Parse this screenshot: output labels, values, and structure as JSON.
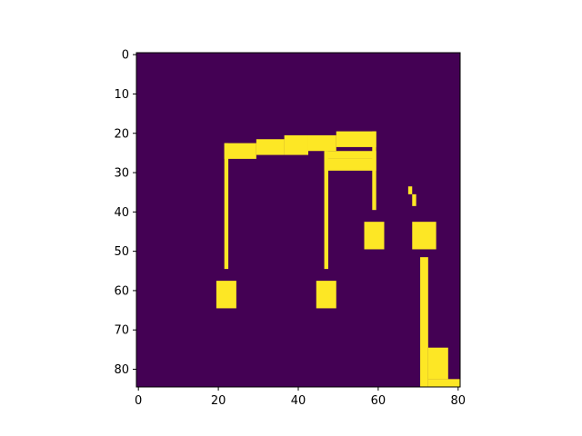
{
  "chart_data": {
    "type": "heatmap",
    "title": "",
    "xlabel": "",
    "ylabel": "",
    "grid": false,
    "legend": "none",
    "colormap": "viridis",
    "colors": {
      "low": "#440154",
      "high": "#fde725"
    },
    "shape": [
      85,
      81
    ],
    "xlim": [
      -0.5,
      80.5
    ],
    "ylim": [
      84.5,
      -0.5
    ],
    "x_ticks": [
      0,
      20,
      40,
      60,
      80
    ],
    "x_tick_labels": [
      "0",
      "20",
      "40",
      "60",
      "80"
    ],
    "y_ticks": [
      0,
      10,
      20,
      30,
      40,
      50,
      60,
      70,
      80
    ],
    "y_tick_labels": [
      "0",
      "10",
      "20",
      "30",
      "40",
      "50",
      "60",
      "70",
      "80"
    ],
    "active_regions": [
      {
        "shape": "beam",
        "x": [
          22,
          29
        ],
        "y": [
          23,
          26
        ]
      },
      {
        "shape": "beam",
        "x": [
          30,
          36
        ],
        "y": [
          22,
          25
        ]
      },
      {
        "shape": "beam",
        "x": [
          37,
          42
        ],
        "y": [
          21,
          25
        ]
      },
      {
        "shape": "beam",
        "x": [
          43,
          49
        ],
        "y": [
          21,
          24
        ]
      },
      {
        "shape": "beam",
        "x": [
          50,
          59
        ],
        "y": [
          20,
          23
        ]
      },
      {
        "shape": "beam",
        "x": [
          47,
          59
        ],
        "y": [
          25,
          26
        ]
      },
      {
        "shape": "beam",
        "x": [
          47,
          59
        ],
        "y": [
          27,
          29
        ]
      },
      {
        "shape": "stem",
        "x": [
          22,
          22
        ],
        "y": [
          23,
          54
        ]
      },
      {
        "shape": "stem",
        "x": [
          47,
          47
        ],
        "y": [
          25,
          54
        ]
      },
      {
        "shape": "stem",
        "x": [
          59,
          59
        ],
        "y": [
          20,
          39
        ]
      },
      {
        "shape": "digit",
        "x": [
          20,
          24
        ],
        "y": [
          58,
          64
        ]
      },
      {
        "shape": "digit",
        "x": [
          45,
          49
        ],
        "y": [
          58,
          64
        ]
      },
      {
        "shape": "digit",
        "x": [
          57,
          61
        ],
        "y": [
          43,
          49
        ]
      },
      {
        "shape": "digit",
        "x": [
          69,
          74
        ],
        "y": [
          43,
          49
        ]
      },
      {
        "shape": "mark",
        "x": [
          68,
          68
        ],
        "y": [
          34,
          35
        ]
      },
      {
        "shape": "mark",
        "x": [
          69,
          69
        ],
        "y": [
          36,
          38
        ]
      },
      {
        "shape": "bar",
        "x": [
          71,
          72
        ],
        "y": [
          52,
          84
        ]
      },
      {
        "shape": "block",
        "x": [
          73,
          77
        ],
        "y": [
          75,
          82
        ]
      },
      {
        "shape": "block",
        "x": [
          73,
          80
        ],
        "y": [
          83,
          84
        ]
      }
    ]
  }
}
